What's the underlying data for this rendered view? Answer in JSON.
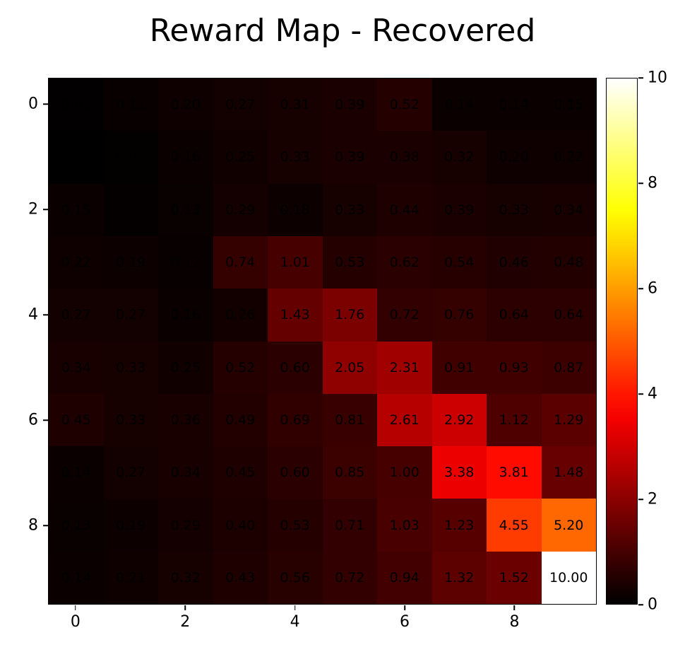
{
  "title": "Reward Map - Recovered",
  "chart_data": {
    "type": "heatmap",
    "title": "Reward Map - Recovered",
    "rows": 10,
    "cols": 10,
    "x_tick_labels": [
      0,
      2,
      4,
      6,
      8
    ],
    "y_tick_labels": [
      0,
      2,
      4,
      6,
      8
    ],
    "annotation_decimals": 2,
    "annotation_color": "#000000",
    "colormap": "hot",
    "grid_on": false,
    "colorbar": {
      "min": 0,
      "max": 10,
      "ticks": [
        0,
        2,
        4,
        6,
        8,
        10
      ],
      "position": "right"
    },
    "values": [
      [
        0.03,
        0.11,
        0.2,
        0.27,
        0.31,
        0.39,
        0.52,
        0.14,
        0.14,
        0.15
      ],
      [
        0.0,
        0.05,
        0.16,
        0.25,
        0.33,
        0.39,
        0.38,
        0.32,
        0.2,
        0.22
      ],
      [
        0.15,
        0.07,
        0.13,
        0.29,
        0.18,
        0.33,
        0.44,
        0.39,
        0.33,
        0.34
      ],
      [
        0.22,
        0.19,
        0.12,
        0.74,
        1.01,
        0.53,
        0.62,
        0.54,
        0.46,
        0.48
      ],
      [
        0.27,
        0.27,
        0.16,
        0.26,
        1.43,
        1.76,
        0.72,
        0.76,
        0.64,
        0.64
      ],
      [
        0.34,
        0.33,
        0.25,
        0.52,
        0.6,
        2.05,
        2.31,
        0.91,
        0.93,
        0.87
      ],
      [
        0.45,
        0.33,
        0.36,
        0.49,
        0.69,
        0.81,
        2.61,
        2.92,
        1.12,
        1.29
      ],
      [
        0.14,
        0.27,
        0.34,
        0.45,
        0.6,
        0.85,
        1.0,
        3.38,
        3.81,
        1.48
      ],
      [
        0.13,
        0.19,
        0.29,
        0.4,
        0.53,
        0.71,
        1.03,
        1.23,
        4.55,
        5.2
      ],
      [
        0.14,
        0.21,
        0.32,
        0.43,
        0.56,
        0.72,
        0.94,
        1.32,
        1.52,
        10.0
      ]
    ]
  }
}
